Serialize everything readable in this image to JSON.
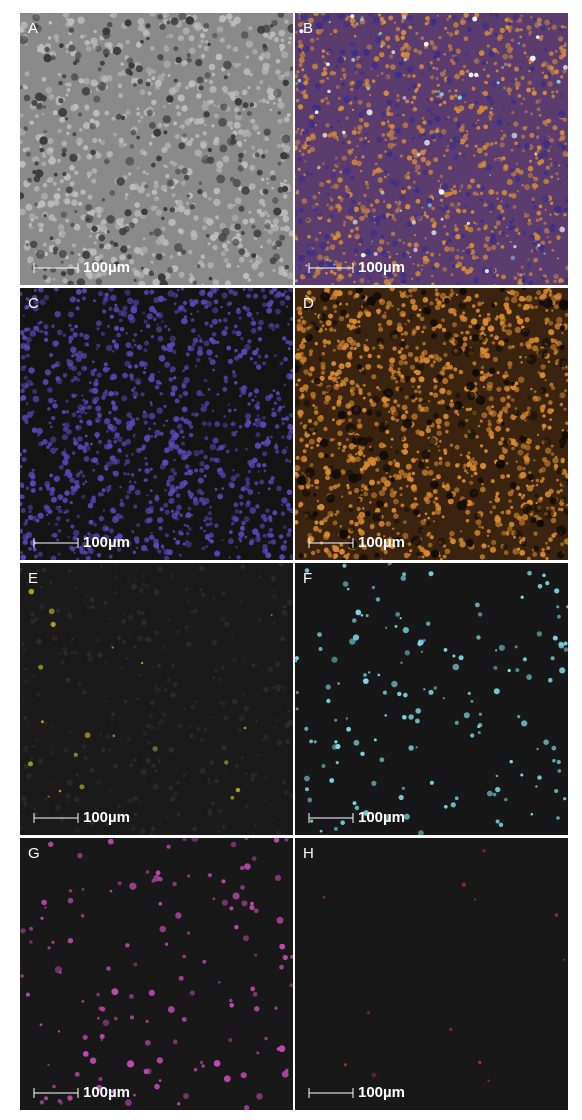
{
  "panels": [
    {
      "label": "A",
      "scale_label": "100µm"
    },
    {
      "label": "B",
      "scale_label": "100µm"
    },
    {
      "label": "C",
      "scale_label": "100µm"
    },
    {
      "label": "D",
      "scale_label": "100µm"
    },
    {
      "label": "E",
      "scale_label": "100µm"
    },
    {
      "label": "F",
      "scale_label": "100µm"
    },
    {
      "label": "G",
      "scale_label": "100µm"
    },
    {
      "label": "H",
      "scale_label": "100µm"
    }
  ]
}
